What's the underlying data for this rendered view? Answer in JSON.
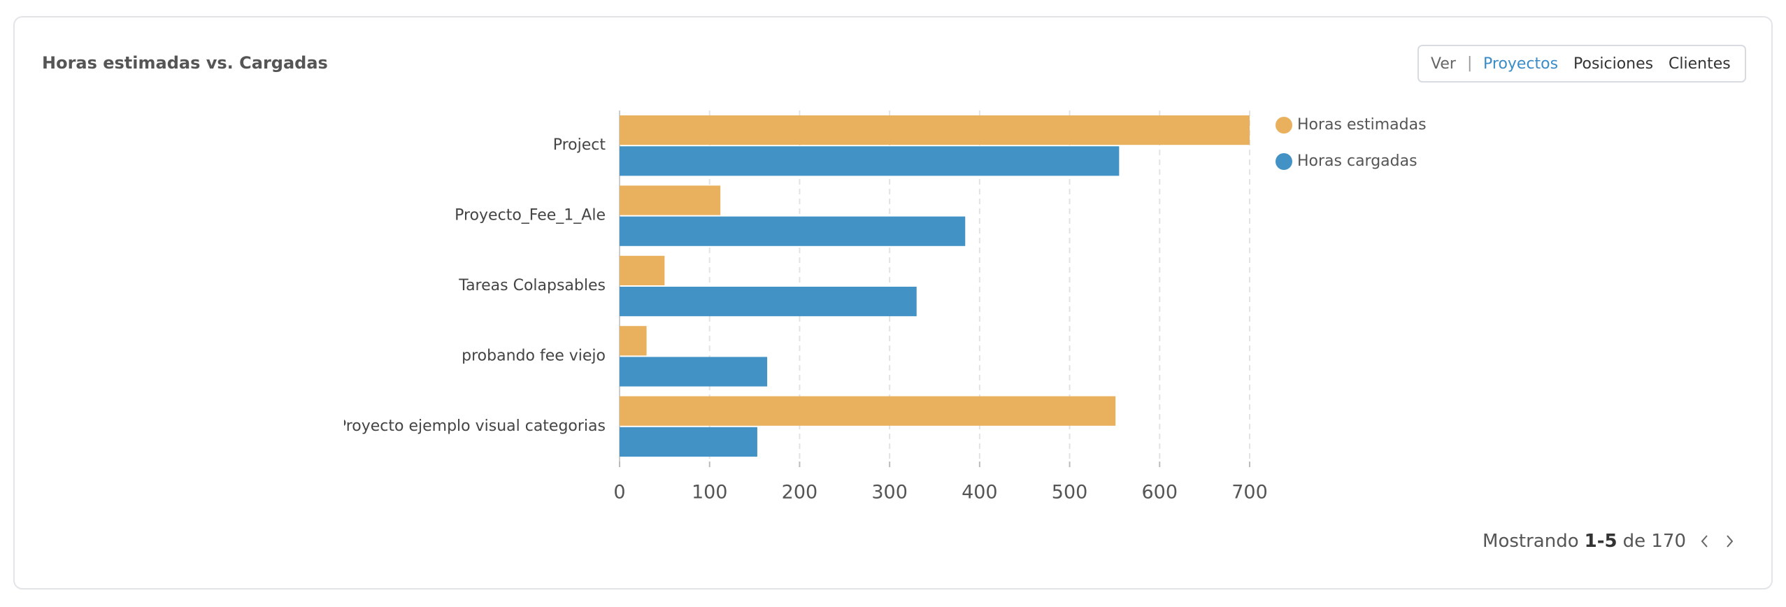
{
  "chart_data": {
    "type": "bar",
    "orientation": "horizontal",
    "title": "Horas estimadas vs. Cargadas",
    "categories": [
      "Project",
      "Proyecto_Fee_1_Ale",
      "Tareas Colapsables",
      "probando fee viejo",
      "Proyecto ejemplo visual categorias"
    ],
    "series": [
      {
        "name": "Horas estimadas",
        "color": "#e9b15e",
        "values": [
          700,
          112,
          50,
          30,
          551
        ]
      },
      {
        "name": "Horas cargadas",
        "color": "#4292c6",
        "values": [
          555,
          384,
          330,
          164,
          153
        ]
      }
    ],
    "xlim": [
      0,
      700
    ],
    "xticks": [
      0,
      100,
      200,
      300,
      400,
      500,
      600,
      700
    ],
    "grid": true,
    "legend": "right"
  },
  "view_toggle": {
    "label": "Ver",
    "separator": "|",
    "options": [
      "Proyectos",
      "Posiciones",
      "Clientes"
    ],
    "active": "Proyectos"
  },
  "pagination": {
    "prefix": "Mostrando",
    "range": "1-5",
    "suffix": "de 170"
  }
}
